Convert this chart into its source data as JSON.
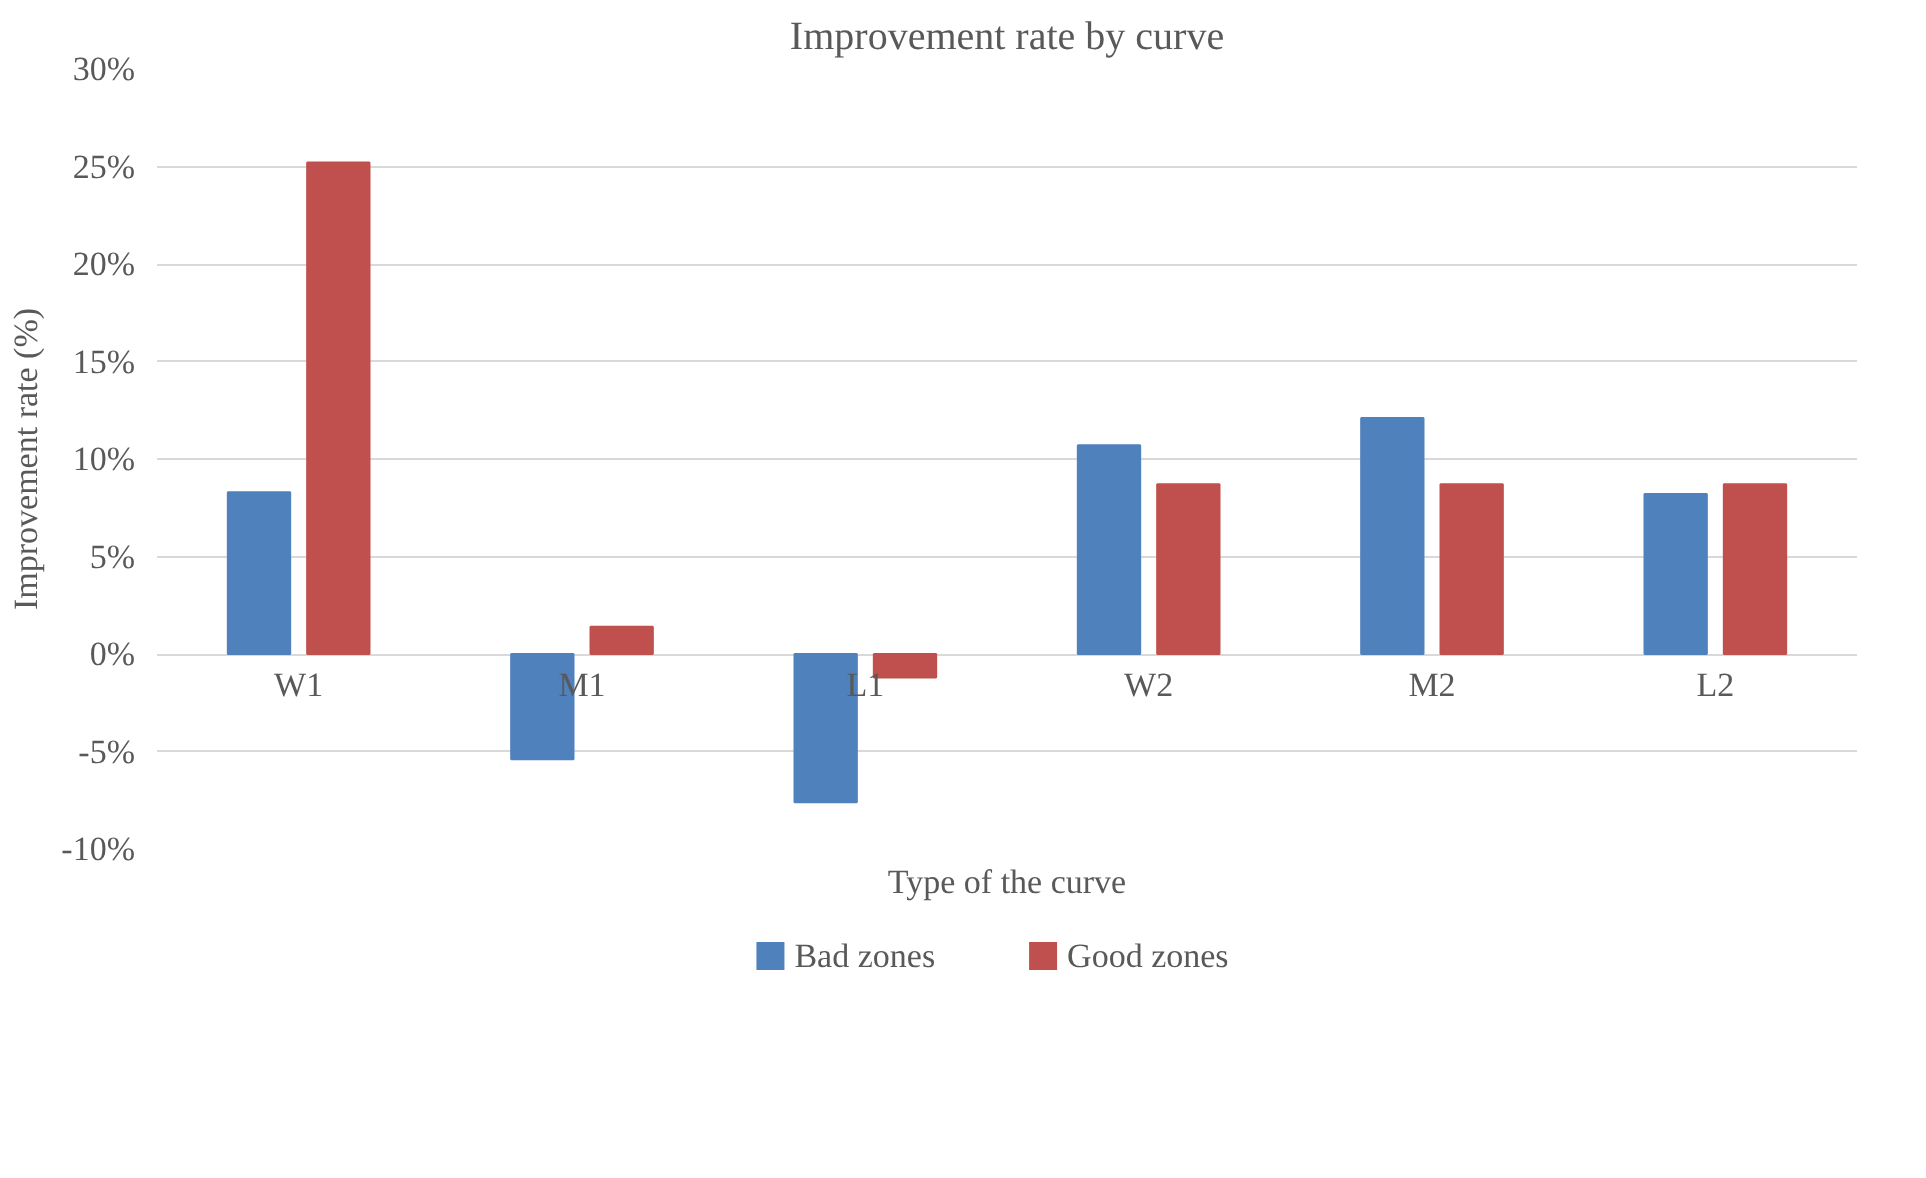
{
  "chart_data": {
    "type": "bar",
    "title": "Improvement rate by curve",
    "xlabel": "Type of the curve",
    "ylabel": "Improvement rate (%)",
    "categories": [
      "W1",
      "M1",
      "L1",
      "W2",
      "M2",
      "L2"
    ],
    "series": [
      {
        "name": "Bad zones",
        "color": "#4f81bd",
        "values": [
          8.3,
          -5.4,
          -7.6,
          10.7,
          12.1,
          8.2
        ]
      },
      {
        "name": "Good zones",
        "color": "#c0504d",
        "values": [
          25.2,
          1.4,
          -1.2,
          8.7,
          8.7,
          8.7
        ]
      }
    ],
    "ylim": [
      -10,
      30
    ],
    "yticks": [
      {
        "value": -10,
        "label": "-10%"
      },
      {
        "value": -5,
        "label": "-5%"
      },
      {
        "value": 0,
        "label": "0%"
      },
      {
        "value": 5,
        "label": "5%"
      },
      {
        "value": 10,
        "label": "10%"
      },
      {
        "value": 15,
        "label": "15%"
      },
      {
        "value": 20,
        "label": "20%"
      },
      {
        "value": 25,
        "label": "25%"
      },
      {
        "value": 30,
        "label": "30%"
      }
    ],
    "grid": "y",
    "legend": "bottom"
  }
}
